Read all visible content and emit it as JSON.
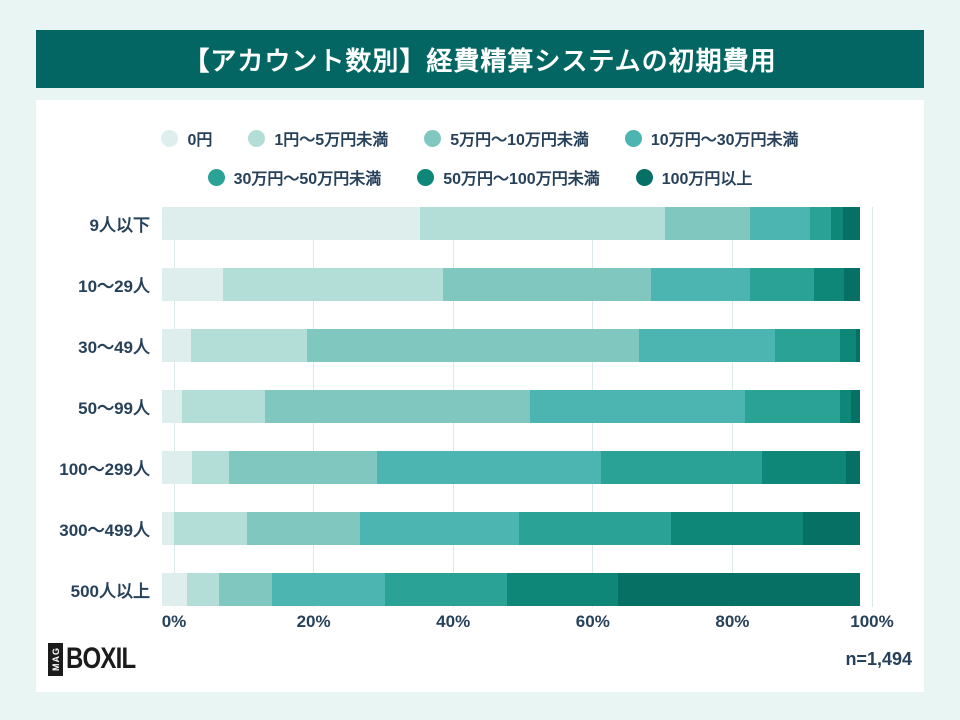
{
  "header": {
    "title": "【アカウント数別】経費精算システムの初期費用",
    "bg_color": "#036663"
  },
  "footer": {
    "logo_mag": "MAG",
    "logo_boxil": "BOXIL",
    "sample_size": "n=1,494"
  },
  "colors": {
    "page_bg": "#e9f5f3",
    "panel_bg": "#ffffff",
    "text": "#27415a",
    "grid": "#dce9ea"
  },
  "chart_data": {
    "type": "bar",
    "stacked": true,
    "orientation": "horizontal",
    "title": "【アカウント数別】経費精算システムの初期費用",
    "xlabel": "",
    "ylabel": "",
    "xlim": [
      0,
      100
    ],
    "grid": true,
    "legend_position": "top",
    "x_ticks": [
      {
        "label": "0%",
        "value": 0
      },
      {
        "label": "20%",
        "value": 20
      },
      {
        "label": "40%",
        "value": 40
      },
      {
        "label": "60%",
        "value": 60
      },
      {
        "label": "80%",
        "value": 80
      },
      {
        "label": "100%",
        "value": 100
      }
    ],
    "categories": [
      "9人以下",
      "10〜29人",
      "30〜49人",
      "50〜99人",
      "100〜299人",
      "300〜499人",
      "500人以上"
    ],
    "series": [
      {
        "name": "0円",
        "color": "#ddeeec",
        "values": [
          37.0,
          8.8,
          4.1,
          2.9,
          4.3,
          1.7,
          3.6
        ]
      },
      {
        "name": "1円〜5万円未満",
        "color": "#b3ddd7",
        "values": [
          35.0,
          31.4,
          16.7,
          11.8,
          5.3,
          10.5,
          4.6
        ]
      },
      {
        "name": "5万円〜10万円未満",
        "color": "#80c7c0",
        "values": [
          12.3,
          29.9,
          47.5,
          38.0,
          21.2,
          16.1,
          7.6
        ]
      },
      {
        "name": "10万円〜30万円未満",
        "color": "#4cb4b1",
        "values": [
          8.5,
          14.1,
          19.5,
          30.8,
          32.1,
          22.8,
          16.1
        ]
      },
      {
        "name": "30万円〜50万円未満",
        "color": "#2aa396",
        "values": [
          3.1,
          9.2,
          9.4,
          13.6,
          23.1,
          21.8,
          17.6
        ]
      },
      {
        "name": "50万円〜100万円未満",
        "color": "#0e8678",
        "values": [
          1.6,
          4.3,
          2.3,
          1.6,
          12.0,
          18.9,
          15.8
        ]
      },
      {
        "name": "100万円以上",
        "color": "#077065",
        "values": [
          2.5,
          2.3,
          0.5,
          1.3,
          2.0,
          8.2,
          34.7
        ]
      }
    ],
    "legend_rows": [
      [
        0,
        1,
        2,
        3
      ],
      [
        4,
        5,
        6
      ]
    ]
  }
}
